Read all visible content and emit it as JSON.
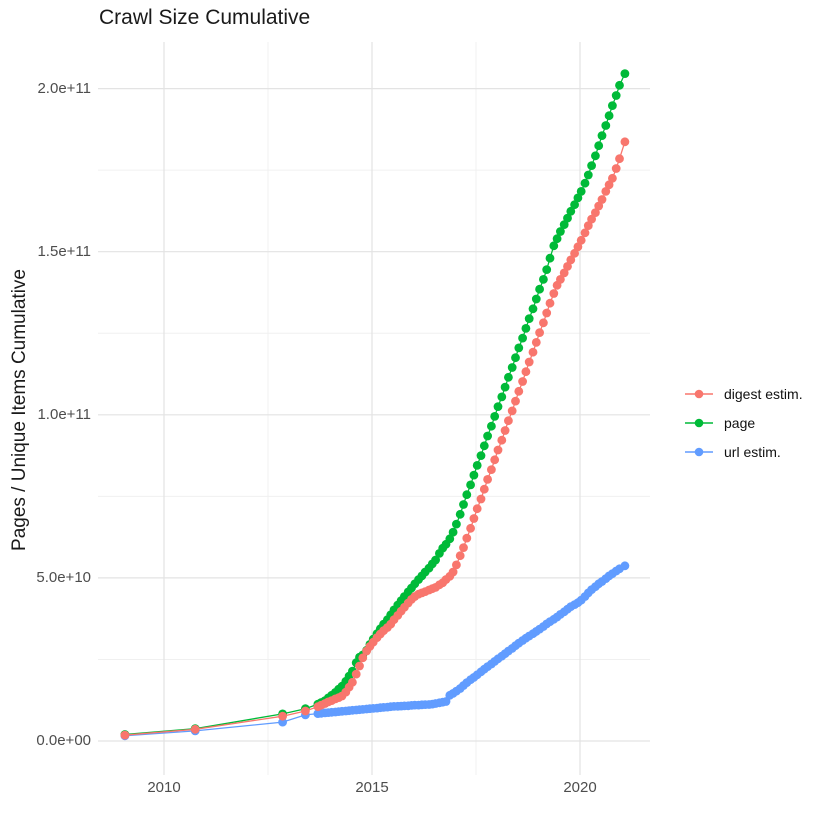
{
  "title": "Crawl Size Cumulative",
  "y_axis": {
    "title": "Pages / Unique Items Cumulative",
    "tick_labels": [
      "0.0e+00",
      "5.0e+10",
      "1.0e+11",
      "1.5e+11",
      "2.0e+11"
    ]
  },
  "x_axis": {
    "tick_labels": [
      "2010",
      "2015",
      "2020"
    ]
  },
  "legend": {
    "items": [
      {
        "label": "digest estim.",
        "color": "#F8766D"
      },
      {
        "label": "page",
        "color": "#00BA38"
      },
      {
        "label": "url estim.",
        "color": "#619CFF"
      }
    ]
  },
  "chart_data": {
    "type": "scatter",
    "title": "Crawl Size Cumulative",
    "xlabel": "",
    "ylabel": "Pages / Unique Items Cumulative",
    "xlim": [
      2008.4,
      2021.7
    ],
    "ylim": [
      0,
      214000000000.0
    ],
    "x_major_ticks": [
      2010,
      2015,
      2020
    ],
    "x_minor_ticks": [
      2012.5,
      2017.5
    ],
    "y_major_ticks_e9": [
      0,
      50,
      100,
      150,
      200
    ],
    "y_minor_ticks_e9": [
      25,
      75,
      125,
      175
    ],
    "grid": true,
    "legend_position": "right",
    "values_unit": "billions (1e9) of pages / unique items",
    "series": [
      {
        "name": "digest estim.",
        "color": "#F8766D",
        "points": [
          [
            2009.06,
            1.8
          ],
          [
            2010.75,
            3.6
          ],
          [
            2012.85,
            7.6
          ],
          [
            2013.4,
            9.2
          ],
          [
            2013.7,
            10.5
          ],
          [
            2013.78,
            11.0
          ],
          [
            2013.87,
            11.5
          ],
          [
            2013.95,
            12.0
          ],
          [
            2014.03,
            12.4
          ],
          [
            2014.12,
            12.9
          ],
          [
            2014.2,
            13.3
          ],
          [
            2014.28,
            13.8
          ],
          [
            2014.37,
            15.0
          ],
          [
            2014.45,
            16.5
          ],
          [
            2014.53,
            18.0
          ],
          [
            2014.62,
            20.5
          ],
          [
            2014.7,
            23.0
          ],
          [
            2014.78,
            25.5
          ],
          [
            2014.87,
            27.6
          ],
          [
            2014.95,
            29.0
          ],
          [
            2015.03,
            30.3
          ],
          [
            2015.12,
            31.7
          ],
          [
            2015.2,
            32.8
          ],
          [
            2015.28,
            33.8
          ],
          [
            2015.37,
            34.8
          ],
          [
            2015.45,
            35.8
          ],
          [
            2015.53,
            37.2
          ],
          [
            2015.62,
            38.5
          ],
          [
            2015.7,
            39.8
          ],
          [
            2015.78,
            41.0
          ],
          [
            2015.87,
            42.3
          ],
          [
            2015.95,
            43.4
          ],
          [
            2016.03,
            44.3
          ],
          [
            2016.12,
            45.0
          ],
          [
            2016.2,
            45.4
          ],
          [
            2016.28,
            45.8
          ],
          [
            2016.37,
            46.3
          ],
          [
            2016.45,
            46.7
          ],
          [
            2016.53,
            47.1
          ],
          [
            2016.62,
            47.9
          ],
          [
            2016.7,
            48.5
          ],
          [
            2016.78,
            49.5
          ],
          [
            2016.87,
            50.5
          ],
          [
            2016.95,
            51.8
          ],
          [
            2017.03,
            54.0
          ],
          [
            2017.12,
            56.8
          ],
          [
            2017.2,
            59.3
          ],
          [
            2017.28,
            62.2
          ],
          [
            2017.37,
            65.2
          ],
          [
            2017.45,
            68.2
          ],
          [
            2017.53,
            71.2
          ],
          [
            2017.62,
            74.2
          ],
          [
            2017.7,
            77.2
          ],
          [
            2017.78,
            80.2
          ],
          [
            2017.87,
            83.2
          ],
          [
            2017.95,
            86.2
          ],
          [
            2018.03,
            89.2
          ],
          [
            2018.12,
            92.2
          ],
          [
            2018.2,
            95.2
          ],
          [
            2018.28,
            98.2
          ],
          [
            2018.37,
            101.2
          ],
          [
            2018.45,
            104.2
          ],
          [
            2018.53,
            107.2
          ],
          [
            2018.62,
            110.2
          ],
          [
            2018.7,
            113.2
          ],
          [
            2018.78,
            116.2
          ],
          [
            2018.87,
            119.2
          ],
          [
            2018.95,
            122.2
          ],
          [
            2019.03,
            125.2
          ],
          [
            2019.12,
            128.2
          ],
          [
            2019.2,
            131.2
          ],
          [
            2019.28,
            134.2
          ],
          [
            2019.37,
            137.2
          ],
          [
            2019.45,
            139.7
          ],
          [
            2019.53,
            141.5
          ],
          [
            2019.62,
            143.5
          ],
          [
            2019.7,
            145.5
          ],
          [
            2019.78,
            147.5
          ],
          [
            2019.87,
            149.5
          ],
          [
            2019.95,
            151.5
          ],
          [
            2020.03,
            153.5
          ],
          [
            2020.12,
            155.8
          ],
          [
            2020.2,
            158.0
          ],
          [
            2020.28,
            160.0
          ],
          [
            2020.37,
            162.0
          ],
          [
            2020.45,
            164.0
          ],
          [
            2020.53,
            166.0
          ],
          [
            2020.62,
            168.5
          ],
          [
            2020.7,
            170.5
          ],
          [
            2020.78,
            172.5
          ],
          [
            2020.87,
            175.5
          ],
          [
            2020.95,
            178.5
          ],
          [
            2021.08,
            183.7
          ]
        ]
      },
      {
        "name": "page",
        "color": "#00BA38",
        "points": [
          [
            2009.06,
            2.0
          ],
          [
            2010.75,
            3.8
          ],
          [
            2012.85,
            8.3
          ],
          [
            2013.4,
            9.9
          ],
          [
            2013.7,
            11.3
          ],
          [
            2013.78,
            11.8
          ],
          [
            2013.87,
            12.4
          ],
          [
            2013.95,
            13.2
          ],
          [
            2014.03,
            14.0
          ],
          [
            2014.12,
            14.9
          ],
          [
            2014.2,
            15.9
          ],
          [
            2014.28,
            16.8
          ],
          [
            2014.37,
            18.3
          ],
          [
            2014.45,
            19.9
          ],
          [
            2014.53,
            21.4
          ],
          [
            2014.62,
            24.0
          ],
          [
            2014.7,
            25.7
          ],
          [
            2014.78,
            26.4
          ],
          [
            2014.87,
            27.8
          ],
          [
            2014.95,
            29.6
          ],
          [
            2015.03,
            31.2
          ],
          [
            2015.12,
            32.9
          ],
          [
            2015.2,
            34.4
          ],
          [
            2015.28,
            35.8
          ],
          [
            2015.37,
            37.2
          ],
          [
            2015.45,
            38.7
          ],
          [
            2015.53,
            40.2
          ],
          [
            2015.62,
            41.7
          ],
          [
            2015.7,
            43.0
          ],
          [
            2015.78,
            44.3
          ],
          [
            2015.87,
            45.7
          ],
          [
            2015.95,
            46.9
          ],
          [
            2016.03,
            48.2
          ],
          [
            2016.12,
            49.5
          ],
          [
            2016.2,
            50.6
          ],
          [
            2016.28,
            51.8
          ],
          [
            2016.37,
            53.0
          ],
          [
            2016.45,
            54.3
          ],
          [
            2016.53,
            55.5
          ],
          [
            2016.62,
            57.5
          ],
          [
            2016.7,
            59.1
          ],
          [
            2016.78,
            60.3
          ],
          [
            2016.87,
            62.0
          ],
          [
            2016.95,
            64.0
          ],
          [
            2017.03,
            66.5
          ],
          [
            2017.12,
            69.5
          ],
          [
            2017.2,
            72.5
          ],
          [
            2017.28,
            75.5
          ],
          [
            2017.37,
            78.5
          ],
          [
            2017.45,
            81.5
          ],
          [
            2017.53,
            84.5
          ],
          [
            2017.62,
            87.5
          ],
          [
            2017.7,
            90.5
          ],
          [
            2017.78,
            93.5
          ],
          [
            2017.87,
            96.5
          ],
          [
            2017.95,
            99.5
          ],
          [
            2018.03,
            102.5
          ],
          [
            2018.12,
            105.5
          ],
          [
            2018.2,
            108.5
          ],
          [
            2018.28,
            111.5
          ],
          [
            2018.37,
            114.5
          ],
          [
            2018.45,
            117.5
          ],
          [
            2018.53,
            120.5
          ],
          [
            2018.62,
            123.5
          ],
          [
            2018.7,
            126.5
          ],
          [
            2018.78,
            129.5
          ],
          [
            2018.87,
            132.5
          ],
          [
            2018.95,
            135.5
          ],
          [
            2019.03,
            138.5
          ],
          [
            2019.12,
            141.5
          ],
          [
            2019.2,
            144.5
          ],
          [
            2019.28,
            148.0
          ],
          [
            2019.37,
            151.8
          ],
          [
            2019.45,
            154.0
          ],
          [
            2019.53,
            156.2
          ],
          [
            2019.62,
            158.3
          ],
          [
            2019.7,
            160.3
          ],
          [
            2019.78,
            162.4
          ],
          [
            2019.87,
            164.4
          ],
          [
            2019.95,
            166.5
          ],
          [
            2020.03,
            168.5
          ],
          [
            2020.12,
            171.0
          ],
          [
            2020.2,
            173.5
          ],
          [
            2020.28,
            176.4
          ],
          [
            2020.37,
            179.4
          ],
          [
            2020.45,
            182.5
          ],
          [
            2020.53,
            185.6
          ],
          [
            2020.62,
            188.7
          ],
          [
            2020.7,
            191.7
          ],
          [
            2020.78,
            194.8
          ],
          [
            2020.87,
            197.9
          ],
          [
            2020.95,
            201.0
          ],
          [
            2021.08,
            204.6
          ]
        ]
      },
      {
        "name": "url estim.",
        "color": "#619CFF",
        "points": [
          [
            2009.06,
            1.6
          ],
          [
            2010.75,
            3.1
          ],
          [
            2012.85,
            5.8
          ],
          [
            2013.4,
            8.0
          ],
          [
            2013.7,
            8.4
          ],
          [
            2013.78,
            8.5
          ],
          [
            2013.87,
            8.6
          ],
          [
            2013.95,
            8.7
          ],
          [
            2014.03,
            8.8
          ],
          [
            2014.12,
            8.9
          ],
          [
            2014.2,
            9.0
          ],
          [
            2014.28,
            9.1
          ],
          [
            2014.37,
            9.2
          ],
          [
            2014.45,
            9.3
          ],
          [
            2014.53,
            9.4
          ],
          [
            2014.62,
            9.5
          ],
          [
            2014.7,
            9.6
          ],
          [
            2014.78,
            9.7
          ],
          [
            2014.87,
            9.8
          ],
          [
            2014.95,
            9.9
          ],
          [
            2015.03,
            10.0
          ],
          [
            2015.12,
            10.1
          ],
          [
            2015.2,
            10.2
          ],
          [
            2015.28,
            10.3
          ],
          [
            2015.37,
            10.4
          ],
          [
            2015.45,
            10.5
          ],
          [
            2015.53,
            10.6
          ],
          [
            2015.62,
            10.65
          ],
          [
            2015.7,
            10.7
          ],
          [
            2015.78,
            10.75
          ],
          [
            2015.87,
            10.8
          ],
          [
            2015.95,
            10.9
          ],
          [
            2016.03,
            11.0
          ],
          [
            2016.12,
            11.0
          ],
          [
            2016.2,
            11.1
          ],
          [
            2016.28,
            11.15
          ],
          [
            2016.37,
            11.2
          ],
          [
            2016.45,
            11.3
          ],
          [
            2016.53,
            11.5
          ],
          [
            2016.62,
            11.7
          ],
          [
            2016.7,
            11.9
          ],
          [
            2016.78,
            12.1
          ],
          [
            2016.87,
            14.0
          ],
          [
            2016.95,
            14.6
          ],
          [
            2017.03,
            15.3
          ],
          [
            2017.12,
            16.1
          ],
          [
            2017.2,
            17.0
          ],
          [
            2017.28,
            17.9
          ],
          [
            2017.37,
            18.8
          ],
          [
            2017.45,
            19.5
          ],
          [
            2017.53,
            20.3
          ],
          [
            2017.62,
            21.2
          ],
          [
            2017.7,
            22.0
          ],
          [
            2017.78,
            22.8
          ],
          [
            2017.87,
            23.6
          ],
          [
            2017.95,
            24.4
          ],
          [
            2018.03,
            25.2
          ],
          [
            2018.12,
            26.0
          ],
          [
            2018.2,
            26.8
          ],
          [
            2018.28,
            27.6
          ],
          [
            2018.37,
            28.4
          ],
          [
            2018.45,
            29.2
          ],
          [
            2018.53,
            30.0
          ],
          [
            2018.62,
            30.8
          ],
          [
            2018.7,
            31.5
          ],
          [
            2018.78,
            32.2
          ],
          [
            2018.87,
            32.9
          ],
          [
            2018.95,
            33.6
          ],
          [
            2019.03,
            34.3
          ],
          [
            2019.12,
            35.1
          ],
          [
            2019.2,
            35.9
          ],
          [
            2019.28,
            36.6
          ],
          [
            2019.37,
            37.3
          ],
          [
            2019.45,
            38.0
          ],
          [
            2019.53,
            38.8
          ],
          [
            2019.62,
            39.6
          ],
          [
            2019.7,
            40.4
          ],
          [
            2019.78,
            41.2
          ],
          [
            2019.87,
            41.8
          ],
          [
            2019.95,
            42.4
          ],
          [
            2020.03,
            43.2
          ],
          [
            2020.12,
            44.3
          ],
          [
            2020.2,
            45.4
          ],
          [
            2020.28,
            46.4
          ],
          [
            2020.37,
            47.3
          ],
          [
            2020.45,
            48.2
          ],
          [
            2020.53,
            48.9
          ],
          [
            2020.62,
            49.8
          ],
          [
            2020.7,
            50.6
          ],
          [
            2020.78,
            51.3
          ],
          [
            2020.87,
            52.1
          ],
          [
            2020.95,
            52.8
          ],
          [
            2021.08,
            53.7
          ]
        ]
      }
    ]
  }
}
